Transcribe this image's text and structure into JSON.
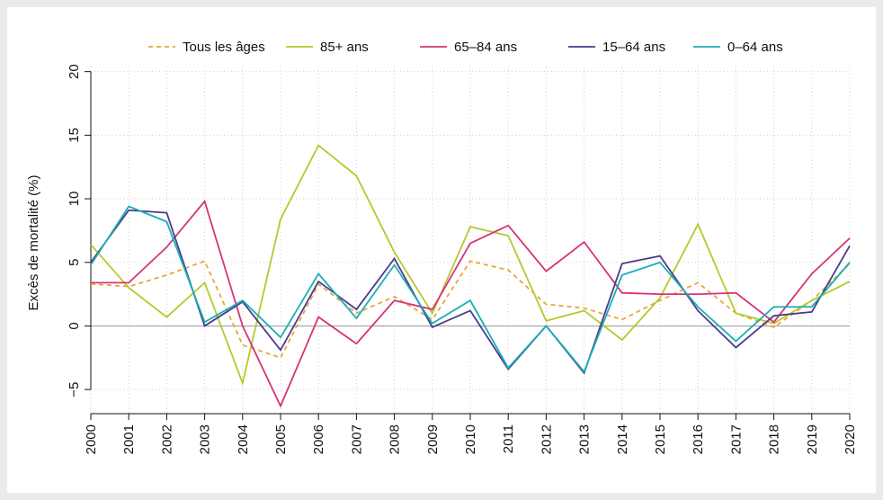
{
  "chart_data": {
    "type": "line",
    "y_label": "Excès de mortalité (%)",
    "categories": [
      "2000",
      "2001",
      "2002",
      "2003",
      "2004",
      "2005",
      "2006",
      "2007",
      "2008",
      "2009",
      "2010",
      "2011",
      "2012",
      "2013",
      "2014",
      "2015",
      "2016",
      "2017",
      "2018",
      "2019",
      "2020"
    ],
    "series": [
      {
        "name": "Tous les âges",
        "color": "#e8a53a",
        "dashed": true,
        "values": [
          3.3,
          3.1,
          4.0,
          5.1,
          -1.5,
          -2.5,
          3.3,
          1.0,
          2.3,
          0.5,
          5.1,
          4.4,
          1.7,
          1.4,
          0.5,
          2.0,
          3.4,
          1.0,
          -0.1,
          2.0,
          4.9
        ]
      },
      {
        "name": "85+ ans",
        "color": "#b5c92a",
        "values": [
          6.4,
          3.0,
          0.7,
          3.4,
          -4.5,
          8.4,
          14.2,
          11.8,
          5.8,
          1.0,
          7.8,
          7.1,
          0.4,
          1.2,
          -1.1,
          2.2,
          8.0,
          1.0,
          0.2,
          2.0,
          3.5
        ]
      },
      {
        "name": "65–84 ans",
        "color": "#d6337a",
        "values": [
          3.4,
          3.4,
          6.2,
          9.8,
          0.0,
          -6.3,
          0.7,
          -1.4,
          2.0,
          1.3,
          6.5,
          7.9,
          4.3,
          6.6,
          2.6,
          2.5,
          2.5,
          2.6,
          0.3,
          4.1,
          6.9
        ]
      },
      {
        "name": "15–64 ans",
        "color": "#4b3a8c",
        "values": [
          5.0,
          9.1,
          8.9,
          0.0,
          1.9,
          -1.9,
          3.5,
          1.3,
          5.3,
          -0.1,
          1.2,
          -3.4,
          0.0,
          -3.7,
          4.9,
          5.5,
          1.2,
          -1.7,
          0.8,
          1.1,
          6.3
        ]
      },
      {
        "name": "0–64 ans",
        "color": "#1aaeb5",
        "values": [
          4.8,
          9.4,
          8.2,
          0.3,
          2.0,
          -0.9,
          4.1,
          0.6,
          4.8,
          0.2,
          2.0,
          -3.3,
          0.0,
          -3.6,
          4.0,
          5.0,
          1.5,
          -1.2,
          1.5,
          1.5,
          5.0
        ]
      }
    ],
    "ylim": [
      -6.9,
      20.4
    ],
    "yticks": [
      {
        "value": -5,
        "label": "−5"
      },
      0,
      5,
      10,
      15,
      20
    ],
    "grid": true
  }
}
